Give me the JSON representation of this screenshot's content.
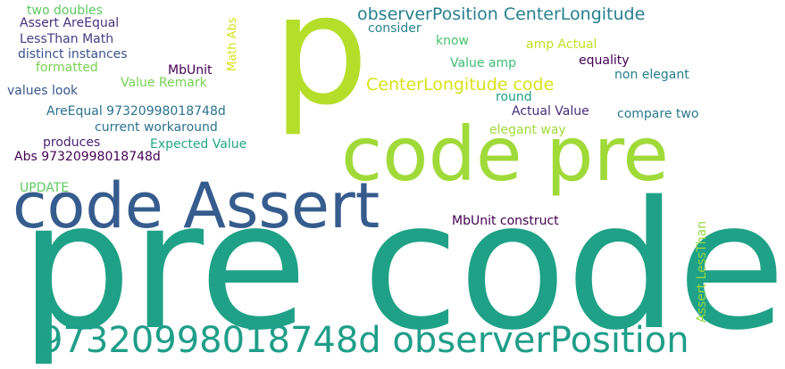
{
  "words": [
    {
      "text": "p",
      "color": "#b5de2b"
    },
    {
      "text": "pre code",
      "color": "#1fa187"
    },
    {
      "text": "code pre",
      "color": "#a0da39"
    },
    {
      "text": "code Assert",
      "color": "#365c8d"
    },
    {
      "text": "97320998018748d observerPosition",
      "color": "#1f9e89"
    },
    {
      "text": "observerPosition CenterLongitude",
      "color": "#277f8e"
    },
    {
      "text": "CenterLongitude code",
      "color": "#d8e219"
    },
    {
      "text": "two doubles",
      "color": "#5ec962"
    },
    {
      "text": "Assert AreEqual",
      "color": "#46327e"
    },
    {
      "text": "LessThan Math",
      "color": "#433e85"
    },
    {
      "text": "distinct instances",
      "color": "#3b528b"
    },
    {
      "text": "formatted",
      "color": "#7ad151"
    },
    {
      "text": "values look",
      "color": "#39568c"
    },
    {
      "text": "AreEqual 97320998018748d",
      "color": "#2c728e"
    },
    {
      "text": "current workaround",
      "color": "#2c728e"
    },
    {
      "text": "produces",
      "color": "#482475"
    },
    {
      "text": "Abs 97320998018748d",
      "color": "#440154"
    },
    {
      "text": "UPDATE",
      "color": "#5ec962"
    },
    {
      "text": "Math Abs",
      "color": "#d8e219"
    },
    {
      "text": "MbUnit",
      "color": "#440154"
    },
    {
      "text": "Value Remark",
      "color": "#75d054"
    },
    {
      "text": "Expected Value",
      "color": "#22a884"
    },
    {
      "text": "consider",
      "color": "#26828e"
    },
    {
      "text": "know",
      "color": "#4ac16d"
    },
    {
      "text": "amp Actual",
      "color": "#c2df23"
    },
    {
      "text": "equality",
      "color": "#440154"
    },
    {
      "text": "Value amp",
      "color": "#3dbc74"
    },
    {
      "text": "non elegant",
      "color": "#277f8e"
    },
    {
      "text": "round",
      "color": "#20a386"
    },
    {
      "text": "Actual Value",
      "color": "#472d7b"
    },
    {
      "text": "compare two",
      "color": "#2a788e"
    },
    {
      "text": "elegant way",
      "color": "#a0da39"
    },
    {
      "text": "MbUnit construct",
      "color": "#440154"
    },
    {
      "text": "Assert LessThan",
      "color": "#95d840"
    }
  ]
}
